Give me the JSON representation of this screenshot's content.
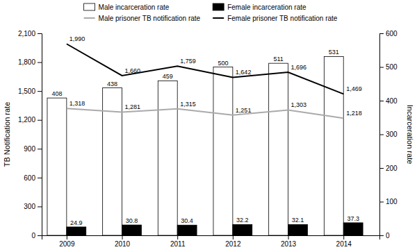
{
  "chart_data": {
    "type": "bar",
    "x": [
      2009,
      2010,
      2011,
      2012,
      2013,
      2014
    ],
    "xlim": [
      2008.55,
      2014.65
    ],
    "xticks": [
      2009,
      2010,
      2011,
      2012,
      2013,
      2014
    ],
    "ylim": [
      0,
      2100
    ],
    "yticks": [
      0,
      300,
      600,
      900,
      {
        "value": 1200,
        "label": "1,200"
      },
      {
        "value": 1500,
        "label": "1,500"
      },
      {
        "value": 1800,
        "label": "1,800"
      },
      {
        "value": 2100,
        "label": "2,100"
      }
    ],
    "y2lim": [
      0,
      600
    ],
    "y2ticks": [
      0,
      100,
      200,
      300,
      400,
      500,
      600
    ],
    "ylabel": "TB Notification rate",
    "y2label": "Incarceration rate",
    "grid": false,
    "legend": "top",
    "data_labels": true,
    "series": [
      {
        "name": "Male incarceration rate",
        "type": "bar",
        "axis": "y2",
        "color": "white",
        "values": [
          408,
          438,
          459,
          500,
          511,
          531
        ]
      },
      {
        "name": "Female incarceration rate",
        "type": "bar",
        "axis": "y2",
        "color": "black",
        "values": [
          24.9,
          30.8,
          30.4,
          32.2,
          32.1,
          37.3
        ]
      },
      {
        "name": "Male prisoner TB notification rate",
        "type": "line",
        "color": "#aaaaaa",
        "values": [
          1318,
          1281,
          1315,
          1251,
          1303,
          1218
        ],
        "value_labels": [
          "1,318",
          "1,281",
          "1,315",
          "1,251",
          "1,303",
          "1,218"
        ]
      },
      {
        "name": "Female prisoner TB notification rate",
        "type": "line",
        "color": "black",
        "values": [
          1990,
          1660,
          1759,
          1642,
          1696,
          1469
        ],
        "value_labels": [
          "1,990",
          "1,660",
          "1,759",
          "1,642",
          "1,696",
          "1,469"
        ]
      }
    ]
  }
}
